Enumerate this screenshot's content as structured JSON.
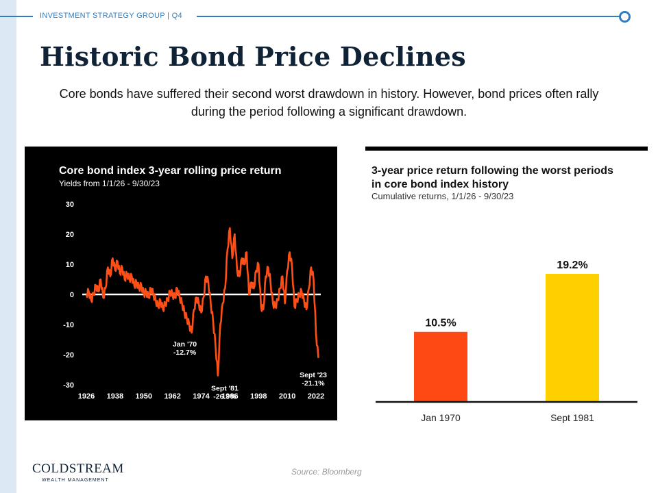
{
  "header": {
    "label": "INVESTMENT STRATEGY GROUP | Q4"
  },
  "slide": {
    "title": "Historic Bond Price Declines",
    "subtitle": "Core bonds have suffered their second worst drawdown in history. However, bond prices often rally during the period following a significant drawdown."
  },
  "footer": {
    "source": "Source: Bloomberg",
    "logo_main": "COLDSTREAM",
    "logo_sub": "WEALTH MANAGEMENT"
  },
  "colors": {
    "accent": "#2f7dc0",
    "title": "#0f2236",
    "line": "#ff4f16",
    "bar1": "#ff4914",
    "bar2": "#ffd000"
  },
  "chart_data": [
    {
      "type": "line",
      "title": "Core bond index 3-year rolling price return",
      "subtitle": "Yields from 1/1/26 - 9/30/23",
      "x_ticks": [
        "1926",
        "1938",
        "1950",
        "1962",
        "1974",
        "1986",
        "1998",
        "2010",
        "2022"
      ],
      "y_ticks": [
        "30",
        "20",
        "10",
        "0",
        "-10",
        "-20",
        "-30"
      ],
      "ylim": [
        -30,
        30
      ],
      "xlim": [
        1926,
        2024
      ],
      "series": [
        {
          "values": [
            [
              1926,
              0
            ],
            [
              1927,
              1
            ],
            [
              1928,
              -2
            ],
            [
              1929,
              0
            ],
            [
              1930,
              3
            ],
            [
              1931,
              1
            ],
            [
              1932,
              5
            ],
            [
              1933,
              -1
            ],
            [
              1934,
              2
            ],
            [
              1935,
              9
            ],
            [
              1936,
              6
            ],
            [
              1937,
              12
            ],
            [
              1938,
              8
            ],
            [
              1939,
              11
            ],
            [
              1940,
              7
            ],
            [
              1941,
              9
            ],
            [
              1942,
              5
            ],
            [
              1943,
              7
            ],
            [
              1944,
              5
            ],
            [
              1945,
              6
            ],
            [
              1946,
              3
            ],
            [
              1947,
              4
            ],
            [
              1948,
              2
            ],
            [
              1949,
              3
            ],
            [
              1950,
              0
            ],
            [
              1951,
              1
            ],
            [
              1952,
              -1
            ],
            [
              1953,
              2
            ],
            [
              1954,
              0
            ],
            [
              1955,
              -2
            ],
            [
              1956,
              -4
            ],
            [
              1957,
              -2
            ],
            [
              1958,
              -5
            ],
            [
              1959,
              -3
            ],
            [
              1960,
              -2
            ],
            [
              1961,
              1
            ],
            [
              1962,
              0
            ],
            [
              1963,
              -1
            ],
            [
              1964,
              2
            ],
            [
              1965,
              -1
            ],
            [
              1966,
              -3
            ],
            [
              1967,
              -6
            ],
            [
              1968,
              -8
            ],
            [
              1969,
              -10
            ],
            [
              1970,
              -12.7
            ],
            [
              1971,
              -5
            ],
            [
              1972,
              -1
            ],
            [
              1973,
              -3
            ],
            [
              1974,
              -6
            ],
            [
              1975,
              -1
            ],
            [
              1976,
              6
            ],
            [
              1977,
              4
            ],
            [
              1978,
              -3
            ],
            [
              1979,
              -9
            ],
            [
              1980,
              -17
            ],
            [
              1981,
              -26.9
            ],
            [
              1982,
              -10
            ],
            [
              1983,
              -3
            ],
            [
              1984,
              2
            ],
            [
              1985,
              15
            ],
            [
              1986,
              22
            ],
            [
              1987,
              12
            ],
            [
              1988,
              20
            ],
            [
              1989,
              8
            ],
            [
              1990,
              6
            ],
            [
              1991,
              12
            ],
            [
              1992,
              10
            ],
            [
              1993,
              14
            ],
            [
              1994,
              0
            ],
            [
              1995,
              4
            ],
            [
              1996,
              2
            ],
            [
              1997,
              8
            ],
            [
              1998,
              10
            ],
            [
              1999,
              -4
            ],
            [
              2000,
              -5
            ],
            [
              2001,
              6
            ],
            [
              2002,
              9
            ],
            [
              2003,
              4
            ],
            [
              2004,
              -3
            ],
            [
              2005,
              -4
            ],
            [
              2006,
              -2
            ],
            [
              2007,
              2
            ],
            [
              2008,
              6
            ],
            [
              2009,
              -3
            ],
            [
              2010,
              8
            ],
            [
              2011,
              14
            ],
            [
              2012,
              9
            ],
            [
              2013,
              -4
            ],
            [
              2014,
              -2
            ],
            [
              2015,
              0
            ],
            [
              2016,
              1
            ],
            [
              2017,
              -2
            ],
            [
              2018,
              -5
            ],
            [
              2019,
              2
            ],
            [
              2020,
              9
            ],
            [
              2021,
              5
            ],
            [
              2022,
              -13
            ],
            [
              2023,
              -21.1
            ]
          ]
        }
      ],
      "annotations": [
        {
          "label": "Jan '70",
          "value": "-12.7%",
          "x": 1970,
          "y": -12.7
        },
        {
          "label": "Sept '81",
          "value": "-26.9%",
          "x": 1981,
          "y": -26.9
        },
        {
          "label": "Sept '23",
          "value": "-21.1%",
          "x": 2023,
          "y": -21.1
        }
      ]
    },
    {
      "type": "bar",
      "title": "3-year price return following the worst periods in core bond index history",
      "title_line1": "3-year price return following the worst periods",
      "title_line2": "in core bond index history",
      "subtitle": "Cumulative returns, 1/1/26 - 9/30/23",
      "categories": [
        "Jan 1970",
        "Sept 1981"
      ],
      "values": [
        10.5,
        19.2
      ],
      "value_labels": [
        "10.5%",
        "19.2%"
      ],
      "ylim": [
        0,
        30
      ]
    }
  ]
}
